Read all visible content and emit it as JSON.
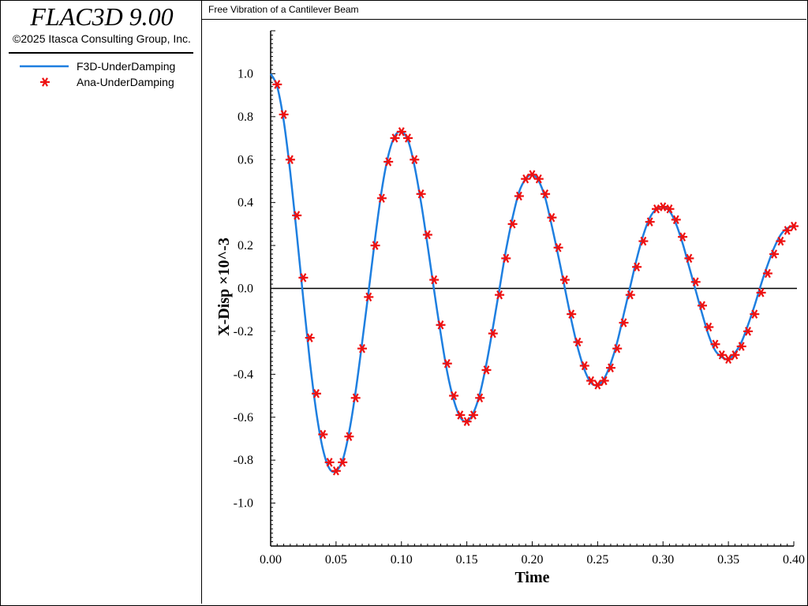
{
  "app": {
    "title": "FLAC3D 9.00",
    "copyright": "©2025 Itasca Consulting Group, Inc."
  },
  "legend": [
    {
      "label": "F3D-UnderDamping",
      "marker": "line",
      "color": "#1e7fe0"
    },
    {
      "label": "Ana-UnderDamping",
      "marker": "asterisk",
      "color": "#ee1111"
    }
  ],
  "chart_data": {
    "type": "line",
    "title": "Free Vibration of a Cantilever Beam",
    "xlabel": "Time",
    "ylabel": "X-Disp ×10^-3",
    "xlim": [
      0,
      0.4
    ],
    "ylim": [
      -1.2,
      1.2
    ],
    "xticks": [
      "0.00",
      "0.05",
      "0.10",
      "0.15",
      "0.20",
      "0.25",
      "0.30",
      "0.35",
      "0.40"
    ],
    "yticks": [
      "1.0",
      "0.8",
      "0.6",
      "0.4",
      "0.2",
      "0.0",
      "-0.2",
      "-0.4",
      "-0.6",
      "-0.8",
      "-1.0"
    ],
    "grid": false,
    "zero_line": true,
    "series": [
      {
        "name": "F3D-UnderDamping",
        "style": "line",
        "color": "#1e7fe0",
        "x": [
          0.0,
          0.005,
          0.01,
          0.015,
          0.02,
          0.025,
          0.03,
          0.035,
          0.04,
          0.045,
          0.05,
          0.055,
          0.06,
          0.065,
          0.07,
          0.075,
          0.08,
          0.085,
          0.09,
          0.095,
          0.1,
          0.105,
          0.11,
          0.115,
          0.12,
          0.125,
          0.13,
          0.135,
          0.14,
          0.145,
          0.15,
          0.155,
          0.16,
          0.165,
          0.17,
          0.175,
          0.18,
          0.185,
          0.19,
          0.195,
          0.2,
          0.205,
          0.21,
          0.215,
          0.22,
          0.225,
          0.23,
          0.235,
          0.24,
          0.245,
          0.25,
          0.255,
          0.26,
          0.265,
          0.27,
          0.275,
          0.28,
          0.285,
          0.29,
          0.295,
          0.3,
          0.305,
          0.31,
          0.315,
          0.32,
          0.325,
          0.33,
          0.335,
          0.34,
          0.345,
          0.35,
          0.355,
          0.36,
          0.365,
          0.37,
          0.375,
          0.38,
          0.385,
          0.39,
          0.395,
          0.4
        ],
        "y": [
          1.0,
          0.94,
          0.78,
          0.54,
          0.25,
          -0.05,
          -0.34,
          -0.58,
          -0.75,
          -0.84,
          -0.85,
          -0.8,
          -0.67,
          -0.48,
          -0.25,
          -0.01,
          0.24,
          0.46,
          0.62,
          0.71,
          0.73,
          0.69,
          0.57,
          0.4,
          0.2,
          -0.01,
          -0.21,
          -0.39,
          -0.52,
          -0.6,
          -0.62,
          -0.58,
          -0.49,
          -0.35,
          -0.18,
          0.0,
          0.18,
          0.33,
          0.45,
          0.51,
          0.53,
          0.5,
          0.42,
          0.29,
          0.15,
          0.0,
          -0.15,
          -0.28,
          -0.38,
          -0.44,
          -0.45,
          -0.42,
          -0.35,
          -0.25,
          -0.12,
          0.01,
          0.14,
          0.25,
          0.33,
          0.37,
          0.38,
          0.36,
          0.3,
          0.21,
          0.1,
          -0.01,
          -0.12,
          -0.22,
          -0.29,
          -0.32,
          -0.33,
          -0.3,
          -0.25,
          -0.17,
          -0.08,
          0.02,
          0.11,
          0.19,
          0.25,
          0.28,
          0.29
        ]
      },
      {
        "name": "Ana-UnderDamping",
        "style": "asterisk",
        "color": "#ee1111",
        "x": [
          0.005,
          0.01,
          0.015,
          0.02,
          0.025,
          0.03,
          0.035,
          0.04,
          0.045,
          0.05,
          0.055,
          0.06,
          0.065,
          0.07,
          0.075,
          0.08,
          0.085,
          0.09,
          0.095,
          0.1,
          0.105,
          0.11,
          0.115,
          0.12,
          0.125,
          0.13,
          0.135,
          0.14,
          0.145,
          0.15,
          0.155,
          0.16,
          0.165,
          0.17,
          0.175,
          0.18,
          0.185,
          0.19,
          0.195,
          0.2,
          0.205,
          0.21,
          0.215,
          0.22,
          0.225,
          0.23,
          0.235,
          0.24,
          0.245,
          0.25,
          0.255,
          0.26,
          0.265,
          0.27,
          0.275,
          0.28,
          0.285,
          0.29,
          0.295,
          0.3,
          0.305,
          0.31,
          0.315,
          0.32,
          0.325,
          0.33,
          0.335,
          0.34,
          0.345,
          0.35,
          0.355,
          0.36,
          0.365,
          0.37,
          0.375,
          0.38,
          0.385,
          0.39,
          0.395,
          0.4
        ],
        "y": [
          0.95,
          0.81,
          0.6,
          0.34,
          0.05,
          -0.23,
          -0.49,
          -0.68,
          -0.81,
          -0.85,
          -0.81,
          -0.69,
          -0.51,
          -0.28,
          -0.04,
          0.2,
          0.42,
          0.59,
          0.7,
          0.73,
          0.7,
          0.6,
          0.44,
          0.25,
          0.04,
          -0.17,
          -0.35,
          -0.5,
          -0.59,
          -0.62,
          -0.59,
          -0.51,
          -0.38,
          -0.21,
          -0.03,
          0.14,
          0.3,
          0.43,
          0.51,
          0.53,
          0.51,
          0.44,
          0.33,
          0.19,
          0.04,
          -0.12,
          -0.25,
          -0.36,
          -0.43,
          -0.45,
          -0.43,
          -0.37,
          -0.28,
          -0.16,
          -0.03,
          0.1,
          0.22,
          0.31,
          0.37,
          0.38,
          0.37,
          0.32,
          0.24,
          0.14,
          0.03,
          -0.08,
          -0.18,
          -0.26,
          -0.31,
          -0.33,
          -0.31,
          -0.27,
          -0.2,
          -0.12,
          -0.02,
          0.07,
          0.16,
          0.22,
          0.27,
          0.29
        ]
      }
    ]
  }
}
